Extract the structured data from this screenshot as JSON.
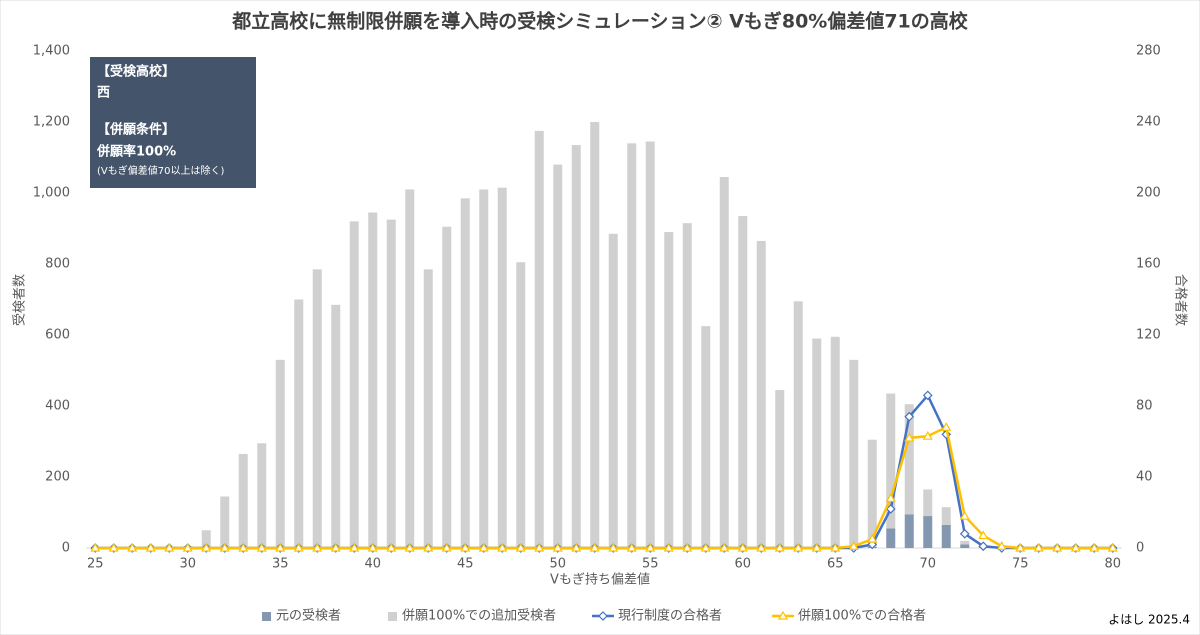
{
  "chart_data": {
    "type": "bar",
    "title": "都立高校に無制限併願を導入時の受検シミュレーション② Vもぎ80%偏差値71の高校",
    "x_label": "Vもぎ持ち偏差値",
    "y_label": "受検者数",
    "y2_label": "合格者数",
    "annotation": [
      "【受検高校】",
      "西",
      "【併願条件】",
      "併願率100%",
      "(Vもぎ偏差値70以上は除く)"
    ],
    "credit": "よはし 2025.4",
    "x": [
      25,
      26,
      27,
      28,
      29,
      30,
      31,
      32,
      33,
      34,
      35,
      36,
      37,
      38,
      39,
      40,
      41,
      42,
      43,
      44,
      45,
      46,
      47,
      48,
      49,
      50,
      51,
      52,
      53,
      54,
      55,
      56,
      57,
      58,
      59,
      60,
      61,
      62,
      63,
      64,
      65,
      66,
      67,
      68,
      69,
      70,
      71,
      72,
      73,
      74,
      75,
      76,
      77,
      78,
      79,
      80
    ],
    "xlim": [
      24.5,
      80.5
    ],
    "xticks": [
      25,
      30,
      35,
      40,
      45,
      50,
      55,
      60,
      65,
      70,
      75,
      80
    ],
    "ylim": [
      0,
      1400
    ],
    "yticks": [
      0,
      200,
      400,
      600,
      800,
      {
        "value": 1000,
        "label": "1,000"
      },
      {
        "value": 1200,
        "label": "1,200"
      },
      {
        "value": 1400,
        "label": "1,400"
      }
    ],
    "y2lim": [
      0,
      280
    ],
    "y2ticks": [
      0,
      40,
      80,
      120,
      160,
      200,
      240,
      280
    ],
    "grid": false,
    "series": [
      {
        "name": "元の受検者",
        "type": "bar",
        "color": "#8497b0",
        "values": [
          0,
          0,
          0,
          0,
          0,
          0,
          0,
          0,
          0,
          0,
          0,
          0,
          0,
          0,
          0,
          0,
          0,
          0,
          0,
          0,
          0,
          0,
          0,
          0,
          0,
          0,
          0,
          0,
          0,
          0,
          0,
          0,
          0,
          0,
          0,
          0,
          0,
          0,
          0,
          0,
          0,
          0,
          3,
          55,
          95,
          90,
          65,
          10,
          2,
          0,
          0,
          0,
          0,
          0,
          0,
          0
        ]
      },
      {
        "name": "併願100%での追加受検者",
        "type": "bar",
        "color": "#d0d0d0",
        "values": [
          0,
          0,
          0,
          0,
          0,
          5,
          50,
          145,
          265,
          295,
          530,
          700,
          785,
          685,
          920,
          945,
          925,
          1010,
          785,
          905,
          985,
          1010,
          1015,
          805,
          1175,
          1080,
          1135,
          1200,
          885,
          1140,
          1145,
          890,
          915,
          625,
          1045,
          935,
          865,
          445,
          695,
          590,
          595,
          530,
          302,
          380,
          310,
          75,
          50,
          10,
          3,
          0,
          0,
          0,
          0,
          0,
          0,
          0
        ]
      },
      {
        "name": "現行制度の合格者",
        "type": "line",
        "axis": "y2",
        "color": "#4472c4",
        "marker": "diamond",
        "values": [
          0,
          0,
          0,
          0,
          0,
          0,
          0,
          0,
          0,
          0,
          0,
          0,
          0,
          0,
          0,
          0,
          0,
          0,
          0,
          0,
          0,
          0,
          0,
          0,
          0,
          0,
          0,
          0,
          0,
          0,
          0,
          0,
          0,
          0,
          0,
          0,
          0,
          0,
          0,
          0,
          0,
          0,
          2,
          22,
          74,
          86,
          64,
          8,
          1,
          0,
          0,
          0,
          0,
          0,
          0,
          0
        ]
      },
      {
        "name": "併願100%での合格者",
        "type": "line",
        "axis": "y2",
        "color": "#ffc000",
        "marker": "triangle",
        "values": [
          0,
          0,
          0,
          0,
          0,
          0,
          0,
          0,
          0,
          0,
          0,
          0,
          0,
          0,
          0,
          0,
          0,
          0,
          0,
          0,
          0,
          0,
          0,
          0,
          0,
          0,
          0,
          0,
          0,
          0,
          0,
          0,
          0,
          0,
          0,
          0,
          0,
          0,
          0,
          0,
          0,
          1,
          5,
          28,
          62,
          63,
          68,
          18,
          7,
          1,
          0,
          0,
          0,
          0,
          0,
          0
        ]
      }
    ]
  }
}
